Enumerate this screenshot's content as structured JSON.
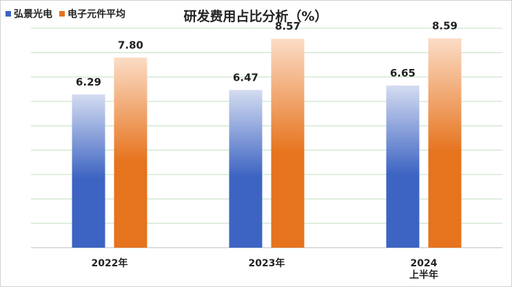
{
  "chart_data": {
    "type": "bar",
    "title": "研发费用占比分析（%）",
    "categories": [
      [
        "2022年"
      ],
      [
        "2023年"
      ],
      [
        "2024",
        "上半年"
      ]
    ],
    "series": [
      {
        "name": "弘景光电",
        "values": [
          6.29,
          6.47,
          6.65
        ],
        "color": "#3d64c2",
        "color_light": "#d4dcf1"
      },
      {
        "name": "电子元件平均",
        "values": [
          7.8,
          8.57,
          8.59
        ],
        "color": "#e6731d",
        "color_light": "#fbdcc6"
      }
    ],
    "ylim": [
      0,
      9
    ],
    "legend": "top-left",
    "grid": true,
    "gridline_color": "#bfe0bf"
  }
}
